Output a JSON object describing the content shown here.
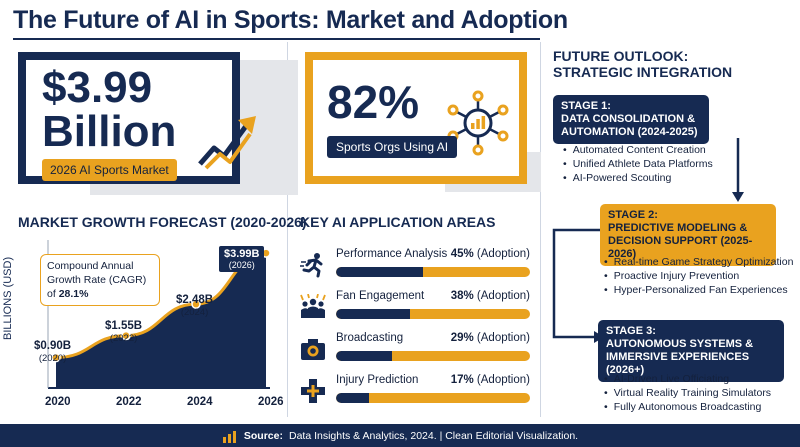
{
  "title": "The Future of AI in Sports: Market and Adoption",
  "market": {
    "amount": "$3.99",
    "unit": "Billion",
    "tag": "2026 AI Sports Market"
  },
  "adoption": {
    "percent": "82%",
    "tag": "Sports Orgs Using AI"
  },
  "growth": {
    "heading": "MARKET GROWTH FORECAST (2020-2026)",
    "cagr_text": "Compound Annual Growth Rate (CAGR) of ",
    "cagr_value": "28.1%",
    "ylabel": "BILLIONS (USD)",
    "points": [
      {
        "label": "$0.90B",
        "year": "(2020)"
      },
      {
        "label": "$1.55B",
        "year": "(2022)"
      },
      {
        "label": "$2.48B",
        "year": "(2024)"
      },
      {
        "label": "$3.99B",
        "year": "(2026)"
      }
    ],
    "xticks": [
      "2020",
      "2022",
      "2024",
      "2026"
    ]
  },
  "applications": {
    "heading": "KEY AI APPLICATION AREAS",
    "items": [
      {
        "name": "Performance Analysis",
        "pct": "45%",
        "suffix": " (Adoption)",
        "icon": "runner-icon"
      },
      {
        "name": "Fan Engagement",
        "pct": "38%",
        "suffix": " (Adoption)",
        "icon": "fans-icon"
      },
      {
        "name": "Broadcasting",
        "pct": "29%",
        "suffix": " (Adoption)",
        "icon": "camera-icon"
      },
      {
        "name": "Injury Prediction",
        "pct": "17%",
        "suffix": " (Adoption)",
        "icon": "medical-cross-icon"
      }
    ]
  },
  "outlook": {
    "heading_line1": "FUTURE OUTLOOK:",
    "heading_line2": "STRATEGIC INTEGRATION",
    "stages": [
      {
        "title": "STAGE 1:",
        "name": "DATA CONSOLIDATION & AUTOMATION (2024-2025)",
        "bullets": [
          "Automated Content Creation",
          "Unified Athlete Data Platforms",
          "AI-Powered Scouting"
        ]
      },
      {
        "title": "STAGE 2:",
        "name": "PREDICTIVE MODELING & DECISION SUPPORT (2025-2026)",
        "bullets": [
          "Real-time Game Strategy Optimization",
          "Proactive Injury Prevention",
          "Hyper-Personalized Fan Experiences"
        ]
      },
      {
        "title": "STAGE 3:",
        "name": "AUTONOMOUS SYSTEMS & IMMERSIVE EXPERIENCES (2026+)",
        "bullets": [
          "AI-Driven Live Officiating",
          "Virtual Reality Training Simulators",
          "Fully Autonomous Broadcasting"
        ]
      }
    ]
  },
  "footer": {
    "source_label": "Source:",
    "source_text": "Data Insights & Analytics, 2024. | Clean Editorial Visualization."
  },
  "colors": {
    "navy": "#162a52",
    "gold": "#e9a21f",
    "grey": "#e4e6ea"
  },
  "chart_data": [
    {
      "type": "area",
      "title": "MARKET GROWTH FORECAST (2020-2026)",
      "xlabel": "",
      "ylabel": "BILLIONS (USD)",
      "x": [
        2020,
        2022,
        2024,
        2026
      ],
      "values": [
        0.9,
        1.55,
        2.48,
        3.99
      ],
      "ylim": [
        0,
        4.2
      ],
      "grid": false
    },
    {
      "type": "bar",
      "title": "KEY AI APPLICATION AREAS",
      "categories": [
        "Performance Analysis",
        "Fan Engagement",
        "Broadcasting",
        "Injury Prediction"
      ],
      "values": [
        45,
        38,
        29,
        17
      ],
      "ylim": [
        0,
        100
      ]
    }
  ]
}
